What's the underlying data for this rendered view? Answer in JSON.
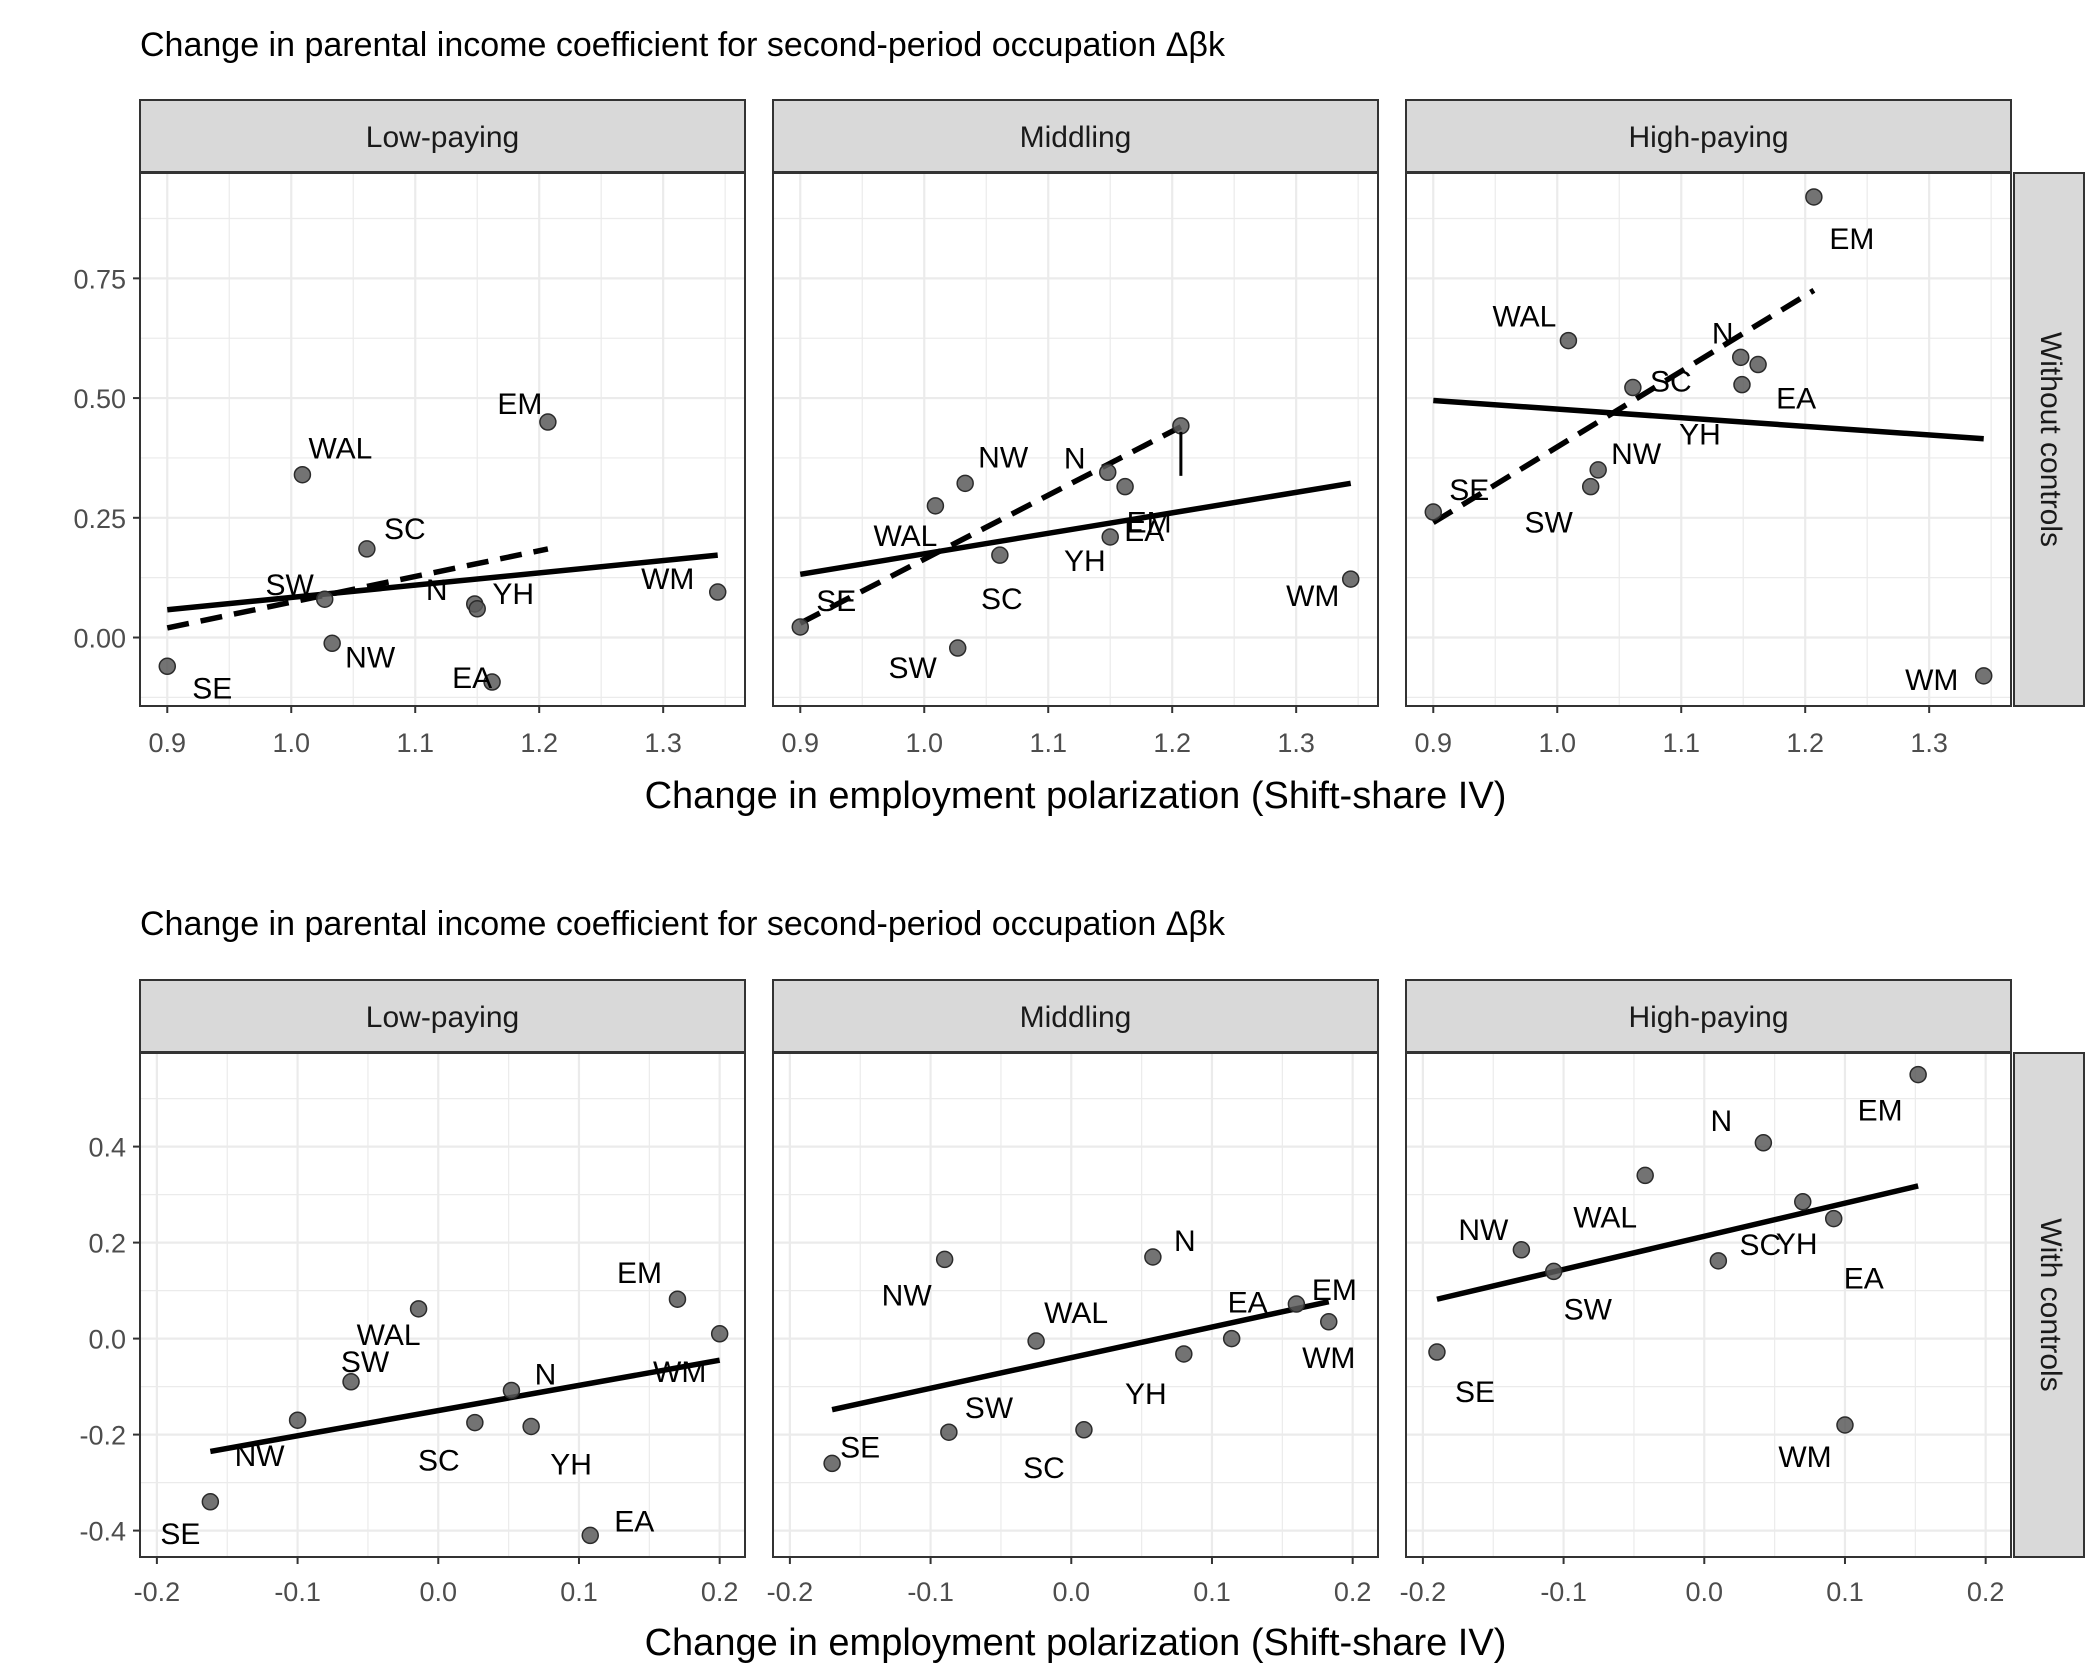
{
  "figure": {
    "panel_labels": [
      "Low-paying",
      "Middling",
      "High-paying"
    ]
  },
  "chart_data": [
    {
      "type": "scatter",
      "title": "Change in parental income coefficient for second-period occupation Δβk",
      "xlabel": "Change in employment polarization (Shift-share IV)",
      "row_label": "Without controls",
      "xlim": [
        0.878,
        1.366
      ],
      "ylim": [
        -0.143,
        0.97
      ],
      "xticks": [
        "0.9",
        "1.0",
        "1.1",
        "1.2",
        "1.3"
      ],
      "yticks": [
        "0.00",
        "0.25",
        "0.50",
        "0.75"
      ],
      "panels": [
        {
          "name": "Low-paying",
          "points": [
            {
              "label": "SE",
              "x": 0.9,
              "y": -0.06
            },
            {
              "label": "WAL",
              "x": 1.009,
              "y": 0.34
            },
            {
              "label": "SC",
              "x": 1.061,
              "y": 0.185
            },
            {
              "label": "SW",
              "x": 1.027,
              "y": 0.08
            },
            {
              "label": "NW",
              "x": 1.033,
              "y": -0.012
            },
            {
              "label": "N",
              "x": 1.148,
              "y": 0.07
            },
            {
              "label": "YH",
              "x": 1.15,
              "y": 0.06
            },
            {
              "label": "EA",
              "x": 1.162,
              "y": -0.093
            },
            {
              "label": "EM",
              "x": 1.207,
              "y": 0.45
            },
            {
              "label": "WM",
              "x": 1.344,
              "y": 0.095
            }
          ],
          "solid_line": {
            "x": [
              0.9,
              1.344
            ],
            "y": [
              0.058,
              0.172
            ]
          },
          "dashed_line": {
            "x": [
              0.9,
              1.207
            ],
            "y": [
              0.02,
              0.185
            ]
          }
        },
        {
          "name": "Middling",
          "points": [
            {
              "label": "SE",
              "x": 0.9,
              "y": 0.022
            },
            {
              "label": "WAL",
              "x": 1.009,
              "y": 0.275
            },
            {
              "label": "NW",
              "x": 1.033,
              "y": 0.322
            },
            {
              "label": "SW",
              "x": 1.027,
              "y": -0.022
            },
            {
              "label": "SC",
              "x": 1.061,
              "y": 0.172
            },
            {
              "label": "N",
              "x": 1.148,
              "y": 0.345
            },
            {
              "label": "EM",
              "x": 1.162,
              "y": 0.315
            },
            {
              "label": "EA",
              "x": 1.15,
              "y": 0.21
            },
            {
              "label": "YH",
              "x": 1.207,
              "y": 0.442
            },
            {
              "label": "WM",
              "x": 1.344,
              "y": 0.122
            }
          ],
          "solid_line": {
            "x": [
              0.9,
              1.344
            ],
            "y": [
              0.132,
              0.322
            ]
          },
          "dashed_line": {
            "x": [
              0.9,
              1.207
            ],
            "y": [
              0.03,
              0.44
            ]
          }
        },
        {
          "name": "High-paying",
          "points": [
            {
              "label": "SE",
              "x": 0.9,
              "y": 0.262
            },
            {
              "label": "WAL",
              "x": 1.009,
              "y": 0.62
            },
            {
              "label": "SC",
              "x": 1.061,
              "y": 0.522
            },
            {
              "label": "SW",
              "x": 1.027,
              "y": 0.315
            },
            {
              "label": "NW",
              "x": 1.033,
              "y": 0.35
            },
            {
              "label": "N",
              "x": 1.148,
              "y": 0.585
            },
            {
              "label": "YH",
              "x": 1.149,
              "y": 0.528
            },
            {
              "label": "EA",
              "x": 1.162,
              "y": 0.57
            },
            {
              "label": "EM",
              "x": 1.207,
              "y": 0.92
            },
            {
              "label": "WM",
              "x": 1.344,
              "y": -0.08
            }
          ],
          "solid_line": {
            "x": [
              0.9,
              1.344
            ],
            "y": [
              0.495,
              0.415
            ]
          },
          "dashed_line": {
            "x": [
              0.9,
              1.207
            ],
            "y": [
              0.24,
              0.725
            ]
          }
        }
      ]
    },
    {
      "type": "scatter",
      "title": "Change in parental income coefficient for second-period occupation Δβk",
      "xlabel": "Change in employment polarization (Shift-share IV)",
      "row_label": "With controls",
      "xlim": [
        -0.212,
        0.218
      ],
      "ylim": [
        -0.455,
        0.595
      ],
      "xticks": [
        "-0.2",
        "-0.1",
        "0.0",
        "0.1",
        "0.2"
      ],
      "yticks": [
        "-0.4",
        "-0.2",
        "0.0",
        "0.2",
        "0.4"
      ],
      "panels": [
        {
          "name": "Low-paying",
          "points": [
            {
              "label": "SE",
              "x": -0.162,
              "y": -0.34
            },
            {
              "label": "NW",
              "x": -0.1,
              "y": -0.17
            },
            {
              "label": "SW",
              "x": -0.062,
              "y": -0.09
            },
            {
              "label": "WAL",
              "x": -0.014,
              "y": 0.062
            },
            {
              "label": "SC",
              "x": 0.026,
              "y": -0.175
            },
            {
              "label": "N",
              "x": 0.052,
              "y": -0.108
            },
            {
              "label": "YH",
              "x": 0.066,
              "y": -0.183
            },
            {
              "label": "EA",
              "x": 0.108,
              "y": -0.41
            },
            {
              "label": "EM",
              "x": 0.17,
              "y": 0.082
            },
            {
              "label": "WM",
              "x": 0.2,
              "y": 0.01
            }
          ],
          "solid_line": {
            "x": [
              -0.162,
              0.2
            ],
            "y": [
              -0.235,
              -0.045
            ]
          }
        },
        {
          "name": "Middling",
          "points": [
            {
              "label": "SE",
              "x": -0.17,
              "y": -0.26
            },
            {
              "label": "NW",
              "x": -0.09,
              "y": 0.165
            },
            {
              "label": "SW",
              "x": -0.087,
              "y": -0.195
            },
            {
              "label": "WAL",
              "x": -0.025,
              "y": -0.005
            },
            {
              "label": "SC",
              "x": 0.009,
              "y": -0.19
            },
            {
              "label": "N",
              "x": 0.058,
              "y": 0.17
            },
            {
              "label": "YH",
              "x": 0.08,
              "y": -0.032
            },
            {
              "label": "EA",
              "x": 0.114,
              "y": 0.0
            },
            {
              "label": "EM",
              "x": 0.16,
              "y": 0.072
            },
            {
              "label": "WM",
              "x": 0.183,
              "y": 0.035
            }
          ],
          "solid_line": {
            "x": [
              -0.17,
              0.183
            ],
            "y": [
              -0.148,
              0.077
            ]
          }
        },
        {
          "name": "High-paying",
          "points": [
            {
              "label": "SE",
              "x": -0.19,
              "y": -0.028
            },
            {
              "label": "NW",
              "x": -0.13,
              "y": 0.185
            },
            {
              "label": "SW",
              "x": -0.107,
              "y": 0.14
            },
            {
              "label": "WAL",
              "x": -0.042,
              "y": 0.34
            },
            {
              "label": "SC",
              "x": 0.01,
              "y": 0.162
            },
            {
              "label": "N",
              "x": 0.042,
              "y": 0.408
            },
            {
              "label": "YH",
              "x": 0.07,
              "y": 0.285
            },
            {
              "label": "EA",
              "x": 0.092,
              "y": 0.25
            },
            {
              "label": "WM",
              "x": 0.1,
              "y": -0.18
            },
            {
              "label": "EM",
              "x": 0.152,
              "y": 0.55
            }
          ],
          "solid_line": {
            "x": [
              -0.19,
              0.152
            ],
            "y": [
              0.082,
              0.318
            ]
          }
        }
      ]
    }
  ]
}
